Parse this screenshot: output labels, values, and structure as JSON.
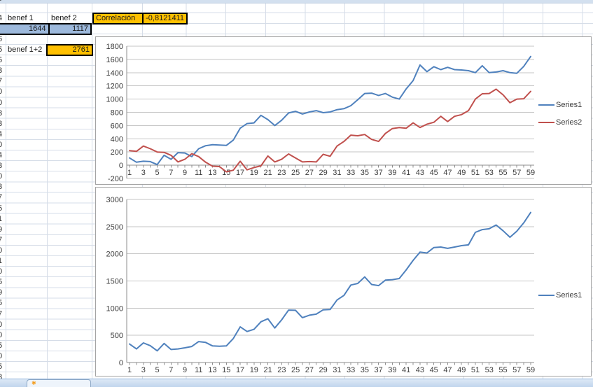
{
  "spreadsheet": {
    "clipped_left_column": [
      "5",
      "4",
      "5",
      "6",
      "5",
      "5",
      "3",
      "7",
      "0",
      "0",
      "3",
      "3",
      "4",
      "0",
      "4",
      "3",
      "0",
      "3",
      "7",
      "5",
      "1",
      "9",
      "7",
      "0",
      "1",
      "0",
      "5",
      "9",
      "5",
      "7",
      "0",
      "0",
      "5",
      "0",
      "5",
      "3",
      "0"
    ],
    "cells": {
      "benef1_label": "benef 1",
      "benef2_label": "benef 2",
      "benef1_value": "1644",
      "benef2_value": "1117",
      "correlation_label": "Correlación",
      "correlation_value": "-0,8121411",
      "benef12_label": "benef 1+2",
      "benef12_value": "2761"
    },
    "colors": {
      "selection_fill": "#9DB9DC",
      "highlight_fill": "#FFC000",
      "gridline": "#D6DDE8"
    }
  },
  "sheet_tab": {
    "icon_glyph": "✱"
  },
  "chart_data": [
    {
      "type": "line",
      "title": "",
      "xlabel": "",
      "ylabel": "",
      "ylim": [
        -200,
        1800
      ],
      "ytick_step": 200,
      "y_tick_labels": [
        "-200",
        "0",
        "200",
        "400",
        "600",
        "800",
        "1000",
        "1200",
        "1400",
        "1600",
        "1800"
      ],
      "x_tick_labels": [
        "1",
        "3",
        "5",
        "7",
        "9",
        "11",
        "13",
        "15",
        "17",
        "19",
        "21",
        "23",
        "25",
        "27",
        "29",
        "31",
        "33",
        "35",
        "37",
        "39",
        "41",
        "43",
        "45",
        "47",
        "49",
        "51",
        "53",
        "55",
        "57",
        "59"
      ],
      "x_range": [
        1,
        59
      ],
      "grid": true,
      "legend_position": "right",
      "axis_color": "#8C8C8C",
      "grid_color": "#C6C6C6",
      "series": [
        {
          "name": "Series1",
          "color": "#4F81BD",
          "values": [
            110,
            45,
            60,
            55,
            10,
            150,
            90,
            190,
            185,
            130,
            250,
            295,
            310,
            305,
            300,
            380,
            560,
            630,
            640,
            755,
            690,
            600,
            680,
            790,
            815,
            775,
            805,
            825,
            795,
            805,
            840,
            855,
            900,
            990,
            1085,
            1090,
            1055,
            1085,
            1030,
            1000,
            1155,
            1280,
            1515,
            1415,
            1490,
            1445,
            1480,
            1445,
            1440,
            1430,
            1400,
            1505,
            1400,
            1410,
            1430,
            1400,
            1390,
            1495,
            1644
          ]
        },
        {
          "name": "Series2",
          "color": "#C0504D",
          "values": [
            220,
            210,
            290,
            250,
            200,
            195,
            150,
            50,
            90,
            175,
            130,
            45,
            -15,
            -20,
            -100,
            -75,
            60,
            -70,
            -35,
            -10,
            140,
            50,
            90,
            170,
            110,
            50,
            55,
            50,
            165,
            135,
            290,
            360,
            455,
            445,
            465,
            390,
            360,
            480,
            555,
            570,
            560,
            640,
            570,
            620,
            650,
            740,
            660,
            740,
            765,
            825,
            1000,
            1080,
            1085,
            1150,
            1065,
            945,
            1000,
            1005,
            1117
          ]
        }
      ]
    },
    {
      "type": "line",
      "title": "",
      "xlabel": "",
      "ylabel": "",
      "ylim": [
        0,
        3000
      ],
      "ytick_step": 500,
      "y_tick_labels": [
        "0",
        "500",
        "1000",
        "1500",
        "2000",
        "2500",
        "3000"
      ],
      "x_tick_labels": [
        "1",
        "3",
        "5",
        "7",
        "9",
        "11",
        "13",
        "15",
        "17",
        "19",
        "21",
        "23",
        "25",
        "27",
        "29",
        "31",
        "33",
        "35",
        "37",
        "39",
        "41",
        "43",
        "45",
        "47",
        "49",
        "51",
        "53",
        "55",
        "57",
        "59"
      ],
      "x_range": [
        1,
        59
      ],
      "grid": true,
      "legend_position": "right",
      "axis_color": "#8C8C8C",
      "grid_color": "#C6C6C6",
      "series": [
        {
          "name": "Series1",
          "color": "#4F81BD",
          "values": [
            340,
            250,
            360,
            310,
            215,
            350,
            240,
            250,
            270,
            295,
            385,
            370,
            305,
            300,
            305,
            440,
            655,
            570,
            610,
            750,
            805,
            635,
            785,
            965,
            960,
            825,
            870,
            890,
            970,
            975,
            1150,
            1235,
            1425,
            1455,
            1575,
            1435,
            1415,
            1515,
            1525,
            1545,
            1705,
            1880,
            2030,
            2015,
            2115,
            2125,
            2100,
            2125,
            2150,
            2165,
            2395,
            2445,
            2460,
            2530,
            2425,
            2305,
            2415,
            2570,
            2761
          ]
        }
      ]
    }
  ]
}
